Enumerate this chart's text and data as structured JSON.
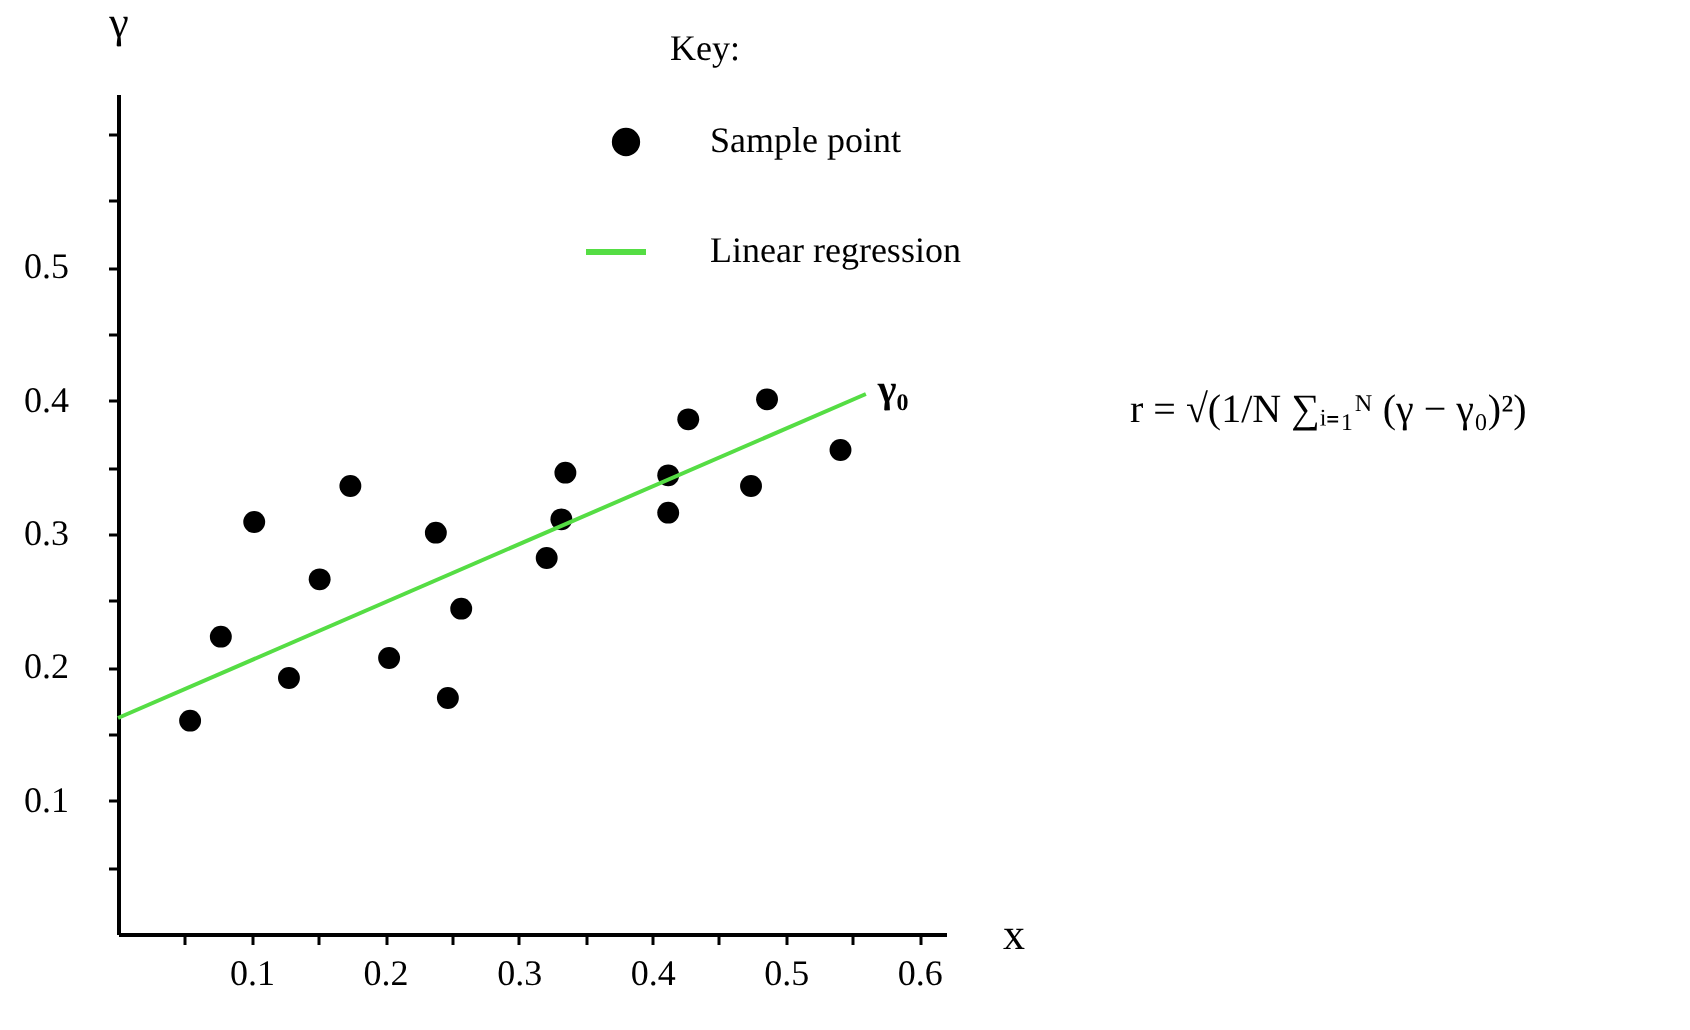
{
  "chart_data": {
    "type": "scatter",
    "xlabel": "x",
    "ylabel": "γ",
    "legend_title": "Key:",
    "legend": "top right",
    "grid": false,
    "marker": "circle",
    "xlim": [
      0,
      0.62
    ],
    "ylim": [
      0,
      0.63
    ],
    "xticks": [
      {
        "value": 0.05,
        "label": null
      },
      0.1,
      {
        "value": 0.15,
        "label": null
      },
      0.2,
      {
        "value": 0.25,
        "label": null
      },
      0.3,
      {
        "value": 0.35,
        "label": null
      },
      0.4,
      {
        "value": 0.45,
        "label": null
      },
      0.5,
      {
        "value": 0.55,
        "label": null
      },
      0.6
    ],
    "yticks": [
      {
        "value": 0.05,
        "label": null
      },
      0.1,
      {
        "value": 0.15,
        "label": null
      },
      0.2,
      {
        "value": 0.25,
        "label": null
      },
      0.3,
      {
        "value": 0.35,
        "label": null
      },
      0.4,
      {
        "value": 0.45,
        "label": null
      },
      0.5,
      {
        "value": 0.55,
        "label": null
      },
      {
        "value": 0.6,
        "label": null
      }
    ],
    "series": [
      {
        "name": "Sample point",
        "color": "#000000",
        "x": [
          0.054,
          0.077,
          0.102,
          0.128,
          0.151,
          0.174,
          0.203,
          0.238,
          0.247,
          0.257,
          0.321,
          0.332,
          0.335,
          0.412,
          0.412,
          0.427,
          0.474,
          0.486,
          0.541
        ],
        "values": [
          0.16,
          0.223,
          0.309,
          0.192,
          0.266,
          0.336,
          0.207,
          0.301,
          0.177,
          0.244,
          0.282,
          0.311,
          0.346,
          0.344,
          0.316,
          0.386,
          0.336,
          0.401,
          0.363
        ]
      },
      {
        "name": "Linear regression",
        "type": "line",
        "marker": "none",
        "line_style": "solid",
        "color": "#55dd44",
        "x": [
          0,
          0.56
        ],
        "values": [
          0.162,
          0.405
        ]
      }
    ],
    "annotations": [
      {
        "text": "γ₀",
        "x": 0.56,
        "y": 0.405
      },
      "r = √(1/N ∑ᵢ₌₁ᴺ (γ − γ₀)²)"
    ]
  }
}
